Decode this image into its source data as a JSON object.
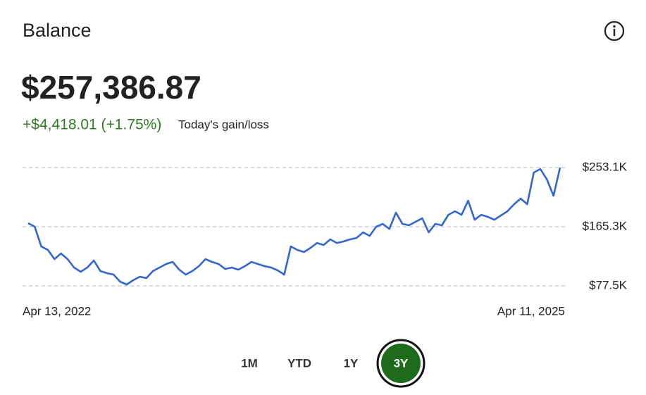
{
  "header": {
    "title": "Balance",
    "balance": "$257,386.87",
    "change": "+$4,418.01 (+1.75%)",
    "change_label": "Today's gain/loss"
  },
  "chart_data": {
    "type": "line",
    "categories": [
      "Apr 13, 2022",
      null,
      null,
      null,
      null,
      null,
      null,
      null,
      null,
      null,
      null,
      null,
      null,
      null,
      null,
      null,
      null,
      null,
      null,
      null,
      null,
      null,
      null,
      null,
      null,
      null,
      null,
      null,
      null,
      null,
      null,
      null,
      null,
      null,
      null,
      null,
      null,
      null,
      null,
      null,
      null,
      null,
      null,
      null,
      null,
      null,
      null,
      null,
      null,
      null,
      null,
      null,
      null,
      null,
      null,
      null,
      null,
      null,
      null,
      null,
      null,
      null,
      null,
      null,
      null,
      null,
      null,
      null,
      null,
      null,
      null,
      null,
      null,
      null,
      null,
      null,
      null,
      null,
      null,
      null,
      null,
      "Apr 11, 2025"
    ],
    "series": [
      {
        "color": "#3466d1",
        "values": [
          170500,
          165300,
          136000,
          130800,
          117200,
          125600,
          117200,
          104700,
          98400,
          104700,
          115100,
          99400,
          96300,
          94200,
          83800,
          79600,
          85900,
          91100,
          89000,
          99400,
          104700,
          109900,
          113000,
          101500,
          94200,
          99400,
          106800,
          117200,
          113000,
          109900,
          102600,
          104700,
          101500,
          106800,
          113000,
          109900,
          106800,
          104700,
          100500,
          94200,
          136000,
          130800,
          127700,
          133900,
          141200,
          138100,
          146500,
          141200,
          143300,
          146500,
          148600,
          156900,
          151700,
          165300,
          169500,
          162100,
          186200,
          169500,
          167400,
          172600,
          177800,
          156900,
          169500,
          167400,
          183000,
          188300,
          183000,
          203900,
          175700,
          183000,
          179900,
          175700,
          182000,
          188300,
          198700,
          207100,
          198700,
          245700,
          251000,
          235300,
          211300,
          253100
        ]
      }
    ],
    "ylim": [
      77500,
      253100
    ],
    "yticks": [
      {
        "value": 77500,
        "label": "$77.5K"
      },
      {
        "value": 165300,
        "label": "$165.3K"
      },
      {
        "value": 253100,
        "label": "$253.1K"
      }
    ],
    "grid": true
  },
  "range_buttons": [
    "1M",
    "YTD",
    "1Y",
    "3Y"
  ],
  "selected_button": 3
}
